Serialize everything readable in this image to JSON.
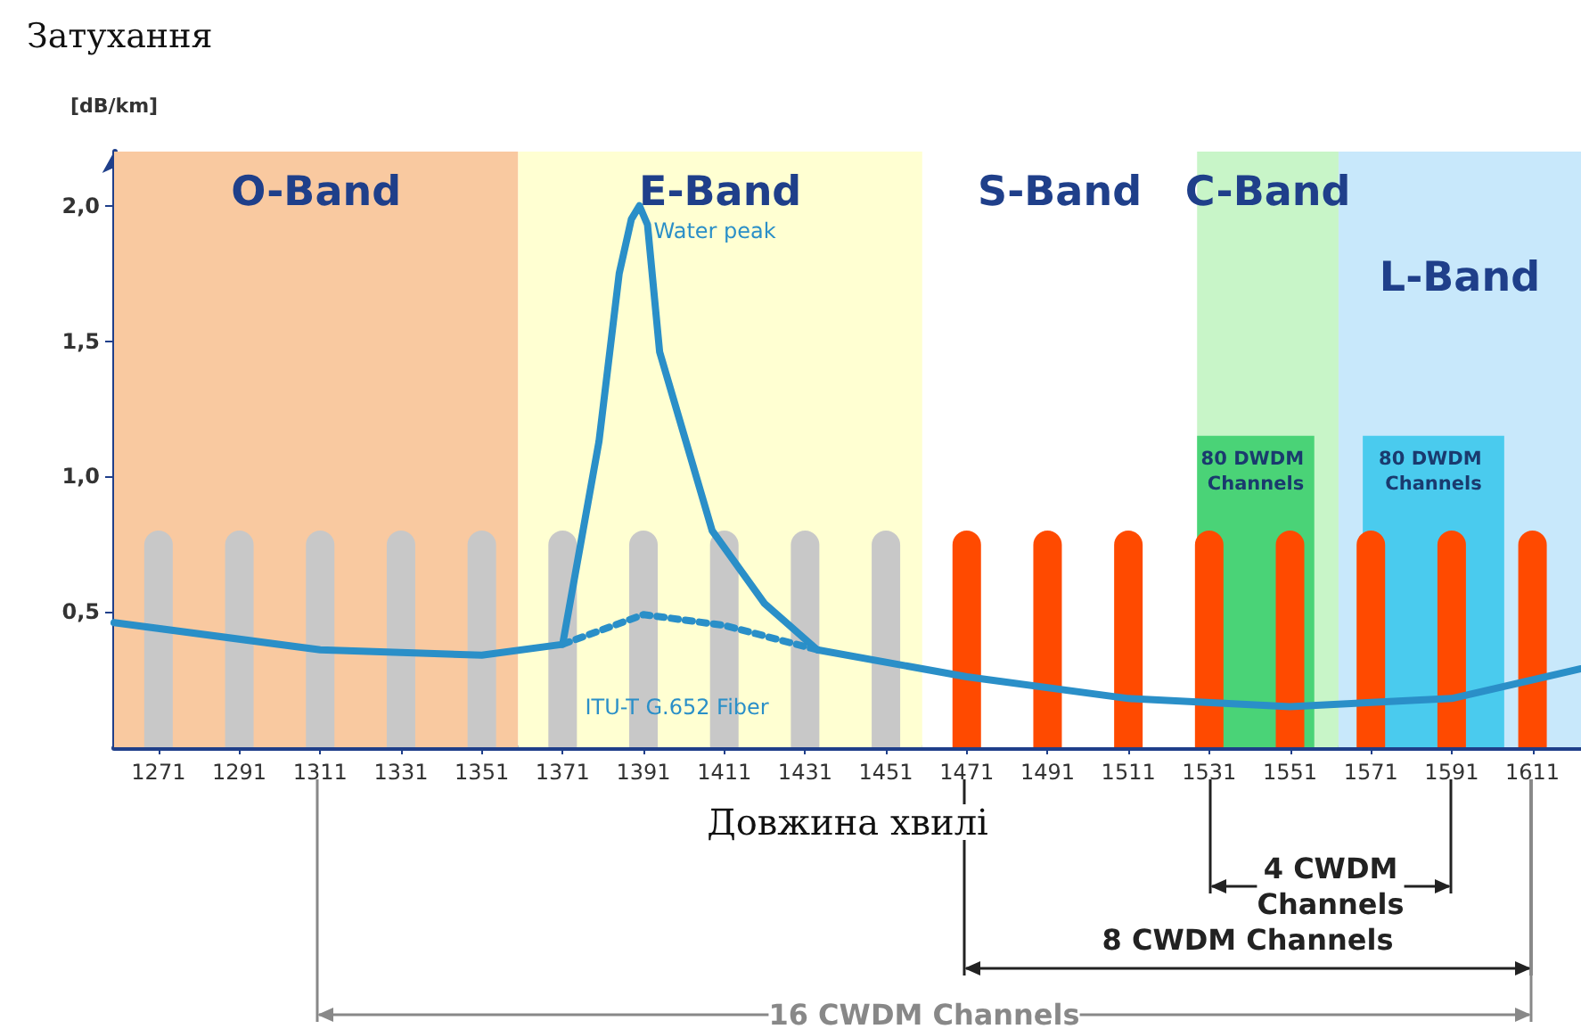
{
  "chart_data": {
    "type": "line",
    "title": "Затухання",
    "ylabel": "[dB/km]",
    "xlabel": "Довжина хвилі",
    "xlim": [
      1260,
      1623
    ],
    "xticks": [
      1271,
      1291,
      1311,
      1331,
      1351,
      1371,
      1391,
      1411,
      1431,
      1451,
      1471,
      1491,
      1511,
      1531,
      1551,
      1571,
      1591,
      1611
    ],
    "ylim": [
      0,
      2.2
    ],
    "yticks": [
      {
        "value": 0.5,
        "label": "0,5"
      },
      {
        "value": 1.0,
        "label": "1,0"
      },
      {
        "value": 1.5,
        "label": "1,5"
      },
      {
        "value": 2.0,
        "label": "2,0"
      }
    ],
    "series": [
      {
        "type": "bar",
        "x": [
          1271,
          1291,
          1311,
          1331,
          1351,
          1371,
          1391,
          1411,
          1431,
          1451,
          1471,
          1491,
          1511,
          1531,
          1551,
          1571,
          1591,
          1611
        ],
        "values": [
          0.8,
          0.8,
          0.8,
          0.8,
          0.8,
          0.8,
          0.8,
          0.8,
          0.8,
          0.8,
          0.8,
          0.8,
          0.8,
          0.8,
          0.8,
          0.8,
          0.8,
          0.8
        ],
        "colors": [
          "#c8c8c8",
          "#c8c8c8",
          "#c8c8c8",
          "#c8c8c8",
          "#c8c8c8",
          "#c8c8c8",
          "#c8c8c8",
          "#c8c8c8",
          "#c8c8c8",
          "#c8c8c8",
          "#ff4a00",
          "#ff4a00",
          "#ff4a00",
          "#ff4a00",
          "#ff4a00",
          "#ff4a00",
          "#ff4a00",
          "#ff4a00"
        ]
      },
      {
        "color": "#2a8fc8",
        "line_style": "solid",
        "x": [
          1260,
          1311,
          1351,
          1371,
          1380,
          1385,
          1388,
          1390,
          1392,
          1395,
          1408,
          1421,
          1434,
          1471,
          1511,
          1551,
          1591,
          1623
        ],
        "values": [
          0.46,
          0.36,
          0.34,
          0.38,
          1.13,
          1.75,
          1.95,
          2.0,
          1.93,
          1.46,
          0.8,
          0.53,
          0.36,
          0.26,
          0.18,
          0.15,
          0.18,
          0.29
        ]
      },
      {
        "color": "#2a8fc8",
        "line_style": "dotted",
        "x": [
          1371,
          1391,
          1411,
          1434
        ],
        "values": [
          0.38,
          0.49,
          0.45,
          0.36
        ]
      }
    ],
    "bands": [
      {
        "axis": "x",
        "from": 1260,
        "to": 1360,
        "label": "O-Band",
        "color": "#f9c9a0"
      },
      {
        "axis": "x",
        "from": 1360,
        "to": 1460,
        "label": "E-Band",
        "color": "#ffffd2"
      },
      {
        "axis": "x",
        "from": 1460,
        "to": 1528,
        "label": "S-Band",
        "color": "#ffffff"
      },
      {
        "axis": "x",
        "from": 1528,
        "to": 1563,
        "label": "C-Band",
        "color": "#c8f5c8"
      },
      {
        "axis": "x",
        "from": 1563,
        "to": 1623,
        "label": "L-Band",
        "color": "#c8e8fb"
      },
      {
        "axis": "x",
        "from": 1528,
        "to": 1557,
        "label": "80 DWDM Channels",
        "color": "#3ccf6e"
      },
      {
        "axis": "x",
        "from": 1569,
        "to": 1604,
        "label": "80 DWDM Channels",
        "color": "#3cc8ec"
      }
    ],
    "annotations": [
      {
        "text": "Water peak",
        "x": 1390,
        "y": 2.0
      },
      {
        "text": "ITU-T G.652 Fiber",
        "x": 1373,
        "y": 0.24
      },
      "4 CWDM Channels",
      "8 CWDM Channels",
      "16 CWDM Channels"
    ],
    "grid": false,
    "marker": "none"
  }
}
